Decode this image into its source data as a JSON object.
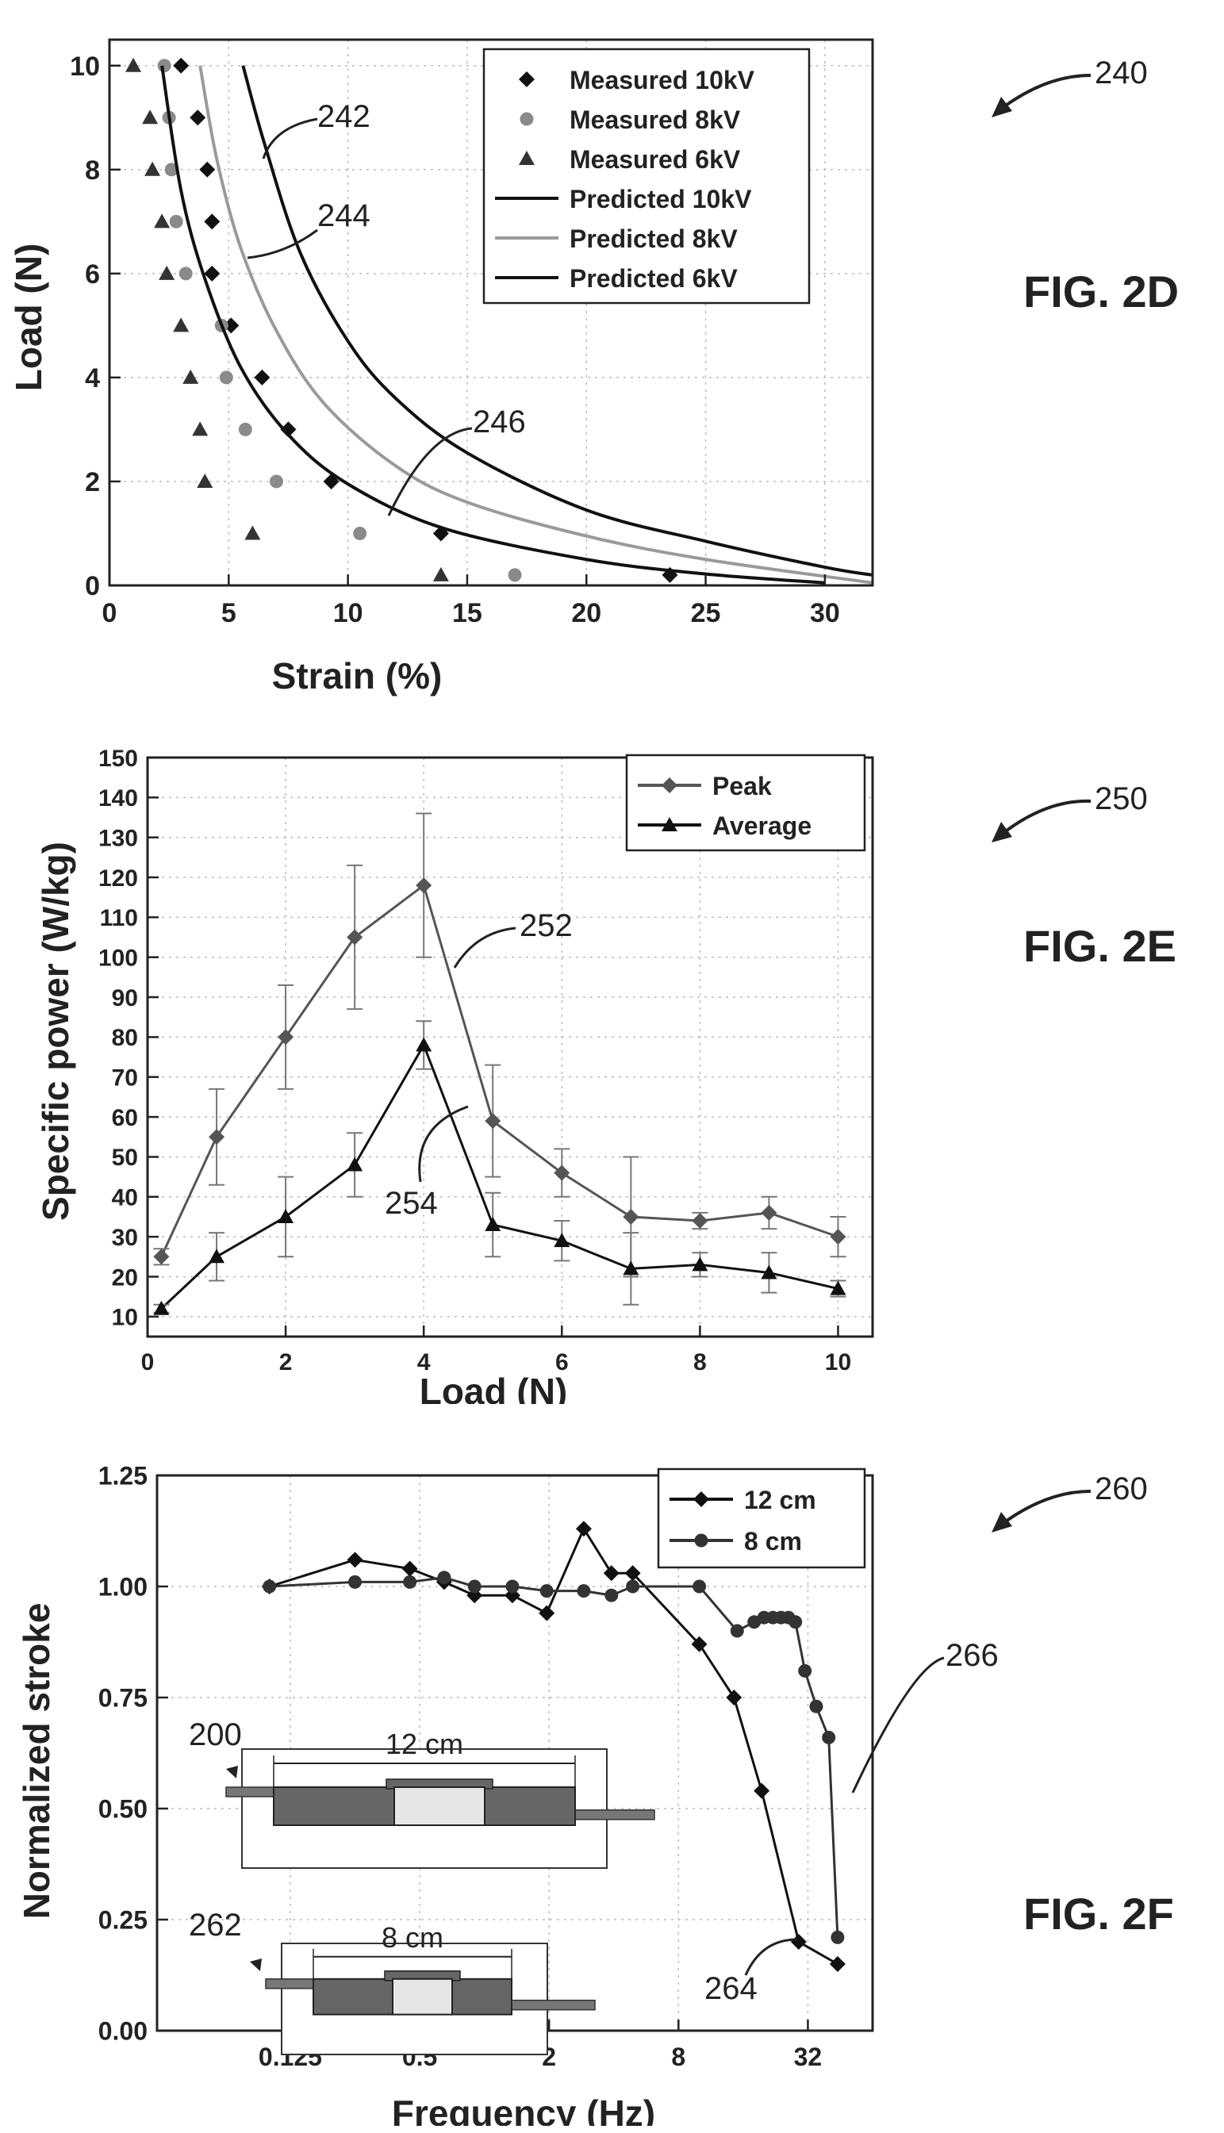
{
  "figures": [
    {
      "label": "FIG. 2D",
      "ref": "240",
      "chart_data": {
        "type": "scatter",
        "xlabel": "Strain (%)",
        "ylabel": "Load (N)",
        "xlim": [
          0,
          32
        ],
        "ylim": [
          0,
          10.5
        ],
        "xticks": [
          0,
          5,
          10,
          15,
          20,
          25,
          30
        ],
        "yticks": [
          0,
          2,
          4,
          6,
          8,
          10
        ],
        "grid": true,
        "legend_position": "top-right",
        "series": [
          {
            "name": "Measured 10kV",
            "kind": "points",
            "marker": "diamond",
            "color": "#111111",
            "x": [
              3.0,
              3.7,
              4.1,
              4.3,
              4.3,
              5.1,
              6.4,
              7.5,
              9.3,
              13.9,
              23.5
            ],
            "y": [
              10,
              9,
              8,
              7,
              6,
              5,
              4,
              3,
              2,
              1,
              0.2
            ]
          },
          {
            "name": "Measured 8kV",
            "kind": "points",
            "marker": "circle",
            "color": "#8a8a8a",
            "x": [
              2.3,
              2.5,
              2.6,
              2.8,
              3.2,
              4.7,
              4.9,
              5.7,
              7.0,
              10.5,
              17.0
            ],
            "y": [
              10,
              9,
              8,
              7,
              6,
              5,
              4,
              3,
              2,
              1,
              0.2
            ]
          },
          {
            "name": "Measured 6kV",
            "kind": "points",
            "marker": "triangle",
            "color": "#333333",
            "x": [
              1.0,
              1.7,
              1.8,
              2.2,
              2.4,
              3.0,
              3.4,
              3.8,
              4.0,
              6.0,
              13.9
            ],
            "y": [
              10,
              9,
              8,
              7,
              6,
              5,
              4,
              3,
              2,
              1,
              0.2
            ]
          },
          {
            "name": "Predicted 10kV",
            "kind": "line",
            "color": "#111111",
            "x": [
              5.6,
              6.5,
              8.0,
              10.0,
              12.0,
              15.0,
              20.0,
              25.0,
              30.0,
              32.0
            ],
            "y": [
              10,
              8.5,
              6.4,
              4.7,
              3.6,
              2.55,
              1.45,
              0.85,
              0.35,
              0.2
            ]
          },
          {
            "name": "Predicted 8kV",
            "kind": "line",
            "color": "#9a9a9a",
            "x": [
              3.8,
              4.5,
              5.5,
              7.0,
              9.0,
              12.0,
              15.0,
              20.0,
              25.0,
              32.0
            ],
            "y": [
              10,
              8.2,
              6.5,
              4.9,
              3.5,
              2.3,
              1.6,
              0.95,
              0.5,
              0.05
            ]
          },
          {
            "name": "Predicted 6kV",
            "kind": "line",
            "color": "#111111",
            "x": [
              2.2,
              3.0,
              4.0,
              5.5,
              7.5,
              10.0,
              14.0,
              20.0,
              25.0,
              30.0
            ],
            "y": [
              10,
              7.6,
              5.9,
              4.2,
              2.9,
              1.95,
              1.1,
              0.5,
              0.22,
              0.05
            ]
          }
        ]
      },
      "callouts": [
        "242",
        "244",
        "246"
      ]
    },
    {
      "label": "FIG. 2E",
      "ref": "250",
      "chart_data": {
        "type": "line",
        "xlabel": "Load (N)",
        "ylabel": "Specific power (W/kg)",
        "xlim": [
          0,
          10.5
        ],
        "ylim": [
          5,
          150
        ],
        "xticks": [
          0,
          2,
          4,
          6,
          8,
          10
        ],
        "yticks": [
          10,
          20,
          30,
          40,
          50,
          60,
          70,
          80,
          90,
          100,
          110,
          120,
          130,
          140,
          150
        ],
        "grid": true,
        "legend_position": "top-right",
        "x": [
          0.2,
          1,
          2,
          3,
          4,
          5,
          6,
          7,
          8,
          9,
          10
        ],
        "series": [
          {
            "name": "Peak",
            "marker": "diamond",
            "color": "#555555",
            "values": [
              25,
              55,
              80,
              105,
              118,
              59,
              46,
              35,
              34,
              36,
              30
            ],
            "errors": [
              2,
              12,
              13,
              18,
              18,
              14,
              6,
              15,
              2,
              4,
              5
            ]
          },
          {
            "name": "Average",
            "marker": "triangle",
            "color": "#111111",
            "values": [
              12,
              25,
              35,
              48,
              78,
              33,
              29,
              22,
              23,
              21,
              17
            ],
            "errors": [
              1,
              6,
              10,
              8,
              6,
              8,
              5,
              9,
              3,
              5,
              2
            ]
          }
        ]
      },
      "callouts": [
        "252",
        "254"
      ]
    },
    {
      "label": "FIG. 2F",
      "ref": "260",
      "chart_data": {
        "type": "line",
        "xlabel": "Frequency (Hz)",
        "ylabel": "Normalized stroke",
        "x_scale": "log2",
        "xlim": [
          0.03,
          64
        ],
        "ylim": [
          0,
          1.25
        ],
        "xtick_values": [
          0.125,
          0.5,
          2,
          8,
          32
        ],
        "xtick_labels": [
          "0.125",
          "0.5",
          "2",
          "8",
          "32"
        ],
        "yticks": [
          0.0,
          0.25,
          0.5,
          0.75,
          1.0,
          1.25
        ],
        "ytick_labels": [
          "0.00",
          "0.25",
          "0.50",
          "0.75",
          "1.00",
          "1.25"
        ],
        "grid": true,
        "legend_position": "top-right",
        "series": [
          {
            "name": "12 cm",
            "marker": "diamond",
            "color": "#111111",
            "x": [
              0.1,
              0.25,
              0.45,
              0.65,
              0.9,
              1.35,
              1.95,
              2.9,
              3.9,
              4.9,
              10,
              14.5,
              19.5,
              29,
              44
            ],
            "y": [
              1.0,
              1.06,
              1.04,
              1.01,
              0.98,
              0.98,
              0.94,
              1.13,
              1.03,
              1.03,
              0.87,
              0.75,
              0.54,
              0.2,
              0.15
            ]
          },
          {
            "name": "8 cm",
            "marker": "circle",
            "color": "#333333",
            "x": [
              0.1,
              0.25,
              0.45,
              0.65,
              0.9,
              1.35,
              1.95,
              2.9,
              3.9,
              4.9,
              10,
              15,
              18,
              20,
              22,
              24,
              26,
              28,
              31,
              35,
              40,
              44
            ],
            "y": [
              1.0,
              1.01,
              1.01,
              1.02,
              1.0,
              1.0,
              0.99,
              0.99,
              0.98,
              1.0,
              1.0,
              0.9,
              0.92,
              0.93,
              0.93,
              0.93,
              0.93,
              0.92,
              0.81,
              0.73,
              0.66,
              0.21
            ]
          }
        ]
      },
      "callouts": [
        "264",
        "266"
      ],
      "insets": [
        {
          "ref": "200",
          "dim_label": "12 cm"
        },
        {
          "ref": "262",
          "dim_label": "8 cm"
        }
      ]
    }
  ]
}
